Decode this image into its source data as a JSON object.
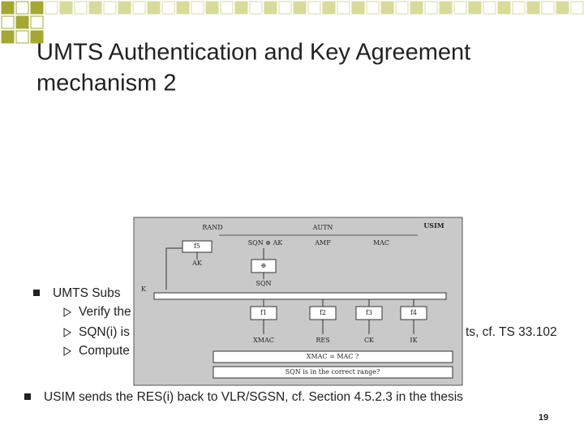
{
  "header": {
    "title_lines": [
      "UMTS Authentication and Key Agreement",
      "mechanism 2"
    ]
  },
  "bullets": [
    {
      "text": "UMTS Subs",
      "sub": [
        {
          "text": "Verify the"
        },
        {
          "text": "SQN(i) is",
          "tail": "ts, cf. TS 33.102"
        },
        {
          "text": "Compute"
        }
      ]
    },
    {
      "text": "USIM sends the RES(i) back to VLR/SGSN, cf. Section 4.5.2.3 in the thesis"
    }
  ],
  "figure": {
    "title": "USIM",
    "inputs": [
      "RAND",
      "AUTN"
    ],
    "autn_fields": [
      "SQN ⊕ AK",
      "AMF",
      "MAC"
    ],
    "key": "K",
    "f5": "f5",
    "ak": "AK",
    "xor": "⊕",
    "sqn": "SQN",
    "functions": [
      "f1",
      "f2",
      "f3",
      "f4"
    ],
    "outputs": [
      "XMAC",
      "RES",
      "CK",
      "IK"
    ],
    "checks": [
      "XMAC = MAC ?",
      "SQN is in the correct range?"
    ]
  },
  "footer": {
    "page_number": 19
  }
}
